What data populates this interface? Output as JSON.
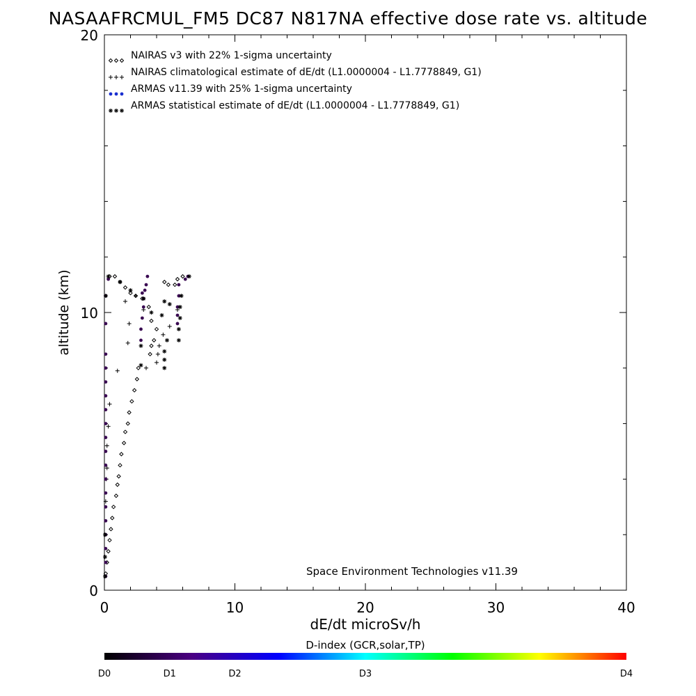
{
  "chart_data": {
    "type": "scatter",
    "title": "NASAAFRCMUL_FM5 DC87 N817NA effective dose rate vs. altitude",
    "xlabel": "dE/dt microSv/h",
    "ylabel": "altitude (km)",
    "xlim": [
      0,
      40
    ],
    "ylim": [
      0,
      20
    ],
    "x_ticks": [
      0,
      10,
      20,
      30,
      40
    ],
    "y_ticks": [
      0,
      10,
      20
    ],
    "grid": false,
    "legend_position": "top-left",
    "annotation": "Space Environment Technologies v11.39",
    "colorbar": {
      "label": "D-index (GCR,solar,TP)",
      "tick_labels": [
        "D0",
        "D1",
        "D2",
        "D3",
        "D4"
      ],
      "tick_values": [
        0,
        0.5,
        1,
        2,
        4
      ],
      "colors": [
        "#000000",
        "#4b0082",
        "#0000ff",
        "#00ffff",
        "#00ff00",
        "#ffff00",
        "#ff0000"
      ]
    },
    "series": [
      {
        "name": "NAIRAS v3 with 22% 1-sigma uncertainty",
        "marker": "diamond",
        "color": "#000000",
        "points": [
          [
            0.1,
            0.6
          ],
          [
            0.2,
            1.0
          ],
          [
            0.3,
            1.4
          ],
          [
            0.4,
            1.8
          ],
          [
            0.5,
            2.2
          ],
          [
            0.6,
            2.6
          ],
          [
            0.7,
            3.0
          ],
          [
            0.9,
            3.4
          ],
          [
            1.0,
            3.8
          ],
          [
            1.1,
            4.1
          ],
          [
            1.2,
            4.5
          ],
          [
            1.3,
            4.9
          ],
          [
            1.5,
            5.3
          ],
          [
            1.6,
            5.7
          ],
          [
            1.8,
            6.0
          ],
          [
            1.9,
            6.4
          ],
          [
            2.1,
            6.8
          ],
          [
            2.3,
            7.2
          ],
          [
            2.5,
            7.6
          ],
          [
            2.6,
            8.0
          ],
          [
            3.5,
            8.5
          ],
          [
            3.6,
            8.8
          ],
          [
            3.8,
            9.0
          ],
          [
            4.0,
            9.4
          ],
          [
            3.6,
            9.7
          ],
          [
            3.4,
            10.2
          ],
          [
            2.9,
            10.5
          ],
          [
            2.4,
            10.6
          ],
          [
            2.0,
            10.7
          ],
          [
            1.6,
            10.9
          ],
          [
            1.2,
            11.1
          ],
          [
            0.8,
            11.3
          ],
          [
            0.4,
            11.3
          ],
          [
            5.4,
            11.0
          ],
          [
            4.9,
            11.0
          ],
          [
            4.6,
            11.1
          ],
          [
            5.6,
            11.2
          ],
          [
            6.0,
            11.3
          ]
        ]
      },
      {
        "name": "NAIRAS climatological estimate of dE/dt (L1.0000004 - L1.7778849, G1)",
        "marker": "plus",
        "color": "#000000",
        "points": [
          [
            0.1,
            3.2
          ],
          [
            0.15,
            4.0
          ],
          [
            0.2,
            4.4
          ],
          [
            0.2,
            5.2
          ],
          [
            0.3,
            5.9
          ],
          [
            0.4,
            6.7
          ],
          [
            1.0,
            7.9
          ],
          [
            1.8,
            8.9
          ],
          [
            1.9,
            9.6
          ],
          [
            1.6,
            10.4
          ],
          [
            3.2,
            8.0
          ],
          [
            4.0,
            8.2
          ],
          [
            4.1,
            8.5
          ],
          [
            4.2,
            8.8
          ],
          [
            4.5,
            9.2
          ],
          [
            5.0,
            9.5
          ],
          [
            2.4,
            10.6
          ],
          [
            3.0,
            10.1
          ],
          [
            5.6,
            10.1
          ]
        ]
      },
      {
        "name": "ARMAS v11.39 with 25% 1-sigma uncertainty",
        "marker": "dot",
        "color": "#1a2fd0",
        "points": [
          [
            0.1,
            0.5
          ],
          [
            0.1,
            1.0
          ],
          [
            0.1,
            1.5
          ],
          [
            0.1,
            2.0
          ],
          [
            0.1,
            2.5
          ],
          [
            0.1,
            3.0
          ],
          [
            0.1,
            3.5
          ],
          [
            0.1,
            4.0
          ],
          [
            0.1,
            4.5
          ],
          [
            0.1,
            5.0
          ],
          [
            0.1,
            5.5
          ],
          [
            0.1,
            6.0
          ],
          [
            0.1,
            6.5
          ],
          [
            0.1,
            7.0
          ],
          [
            0.1,
            7.5
          ],
          [
            0.1,
            8.0
          ],
          [
            0.1,
            8.5
          ],
          [
            0.1,
            9.6
          ],
          [
            0.1,
            10.6
          ],
          [
            0.3,
            11.2
          ],
          [
            2.8,
            9.0
          ],
          [
            2.8,
            9.4
          ],
          [
            2.9,
            9.8
          ],
          [
            3.0,
            10.2
          ],
          [
            3.0,
            10.5
          ],
          [
            3.1,
            10.8
          ],
          [
            3.2,
            11.0
          ],
          [
            3.3,
            11.3
          ],
          [
            2.9,
            10.7
          ],
          [
            5.6,
            9.6
          ],
          [
            5.6,
            9.9
          ],
          [
            5.6,
            10.2
          ],
          [
            5.7,
            10.6
          ],
          [
            5.7,
            11.0
          ],
          [
            6.2,
            11.2
          ],
          [
            6.4,
            11.3
          ]
        ]
      },
      {
        "name": "ARMAS statistical estimate of dE/dt (L1.0000004 - L1.7778849, G1)",
        "marker": "asterisk",
        "color": "#000000",
        "points": [
          [
            0.05,
            0.5
          ],
          [
            0.05,
            1.2
          ],
          [
            0.05,
            2.0
          ],
          [
            2.8,
            8.1
          ],
          [
            2.8,
            8.8
          ],
          [
            4.6,
            8.0
          ],
          [
            4.6,
            8.3
          ],
          [
            4.6,
            8.6
          ],
          [
            4.8,
            9.0
          ],
          [
            5.7,
            9.0
          ],
          [
            5.7,
            9.4
          ],
          [
            5.8,
            9.8
          ],
          [
            5.8,
            10.2
          ],
          [
            5.9,
            10.6
          ],
          [
            4.6,
            10.4
          ],
          [
            3.0,
            10.5
          ],
          [
            0.1,
            10.6
          ],
          [
            0.3,
            11.3
          ],
          [
            1.2,
            11.1
          ],
          [
            2.0,
            10.8
          ],
          [
            3.6,
            10.0
          ],
          [
            4.4,
            9.9
          ],
          [
            5.0,
            10.3
          ],
          [
            6.5,
            11.3
          ]
        ]
      }
    ]
  },
  "annotation_text": "Space Environment Technologies v11.39",
  "colorbar_title": "D-index (GCR,solar,TP)"
}
